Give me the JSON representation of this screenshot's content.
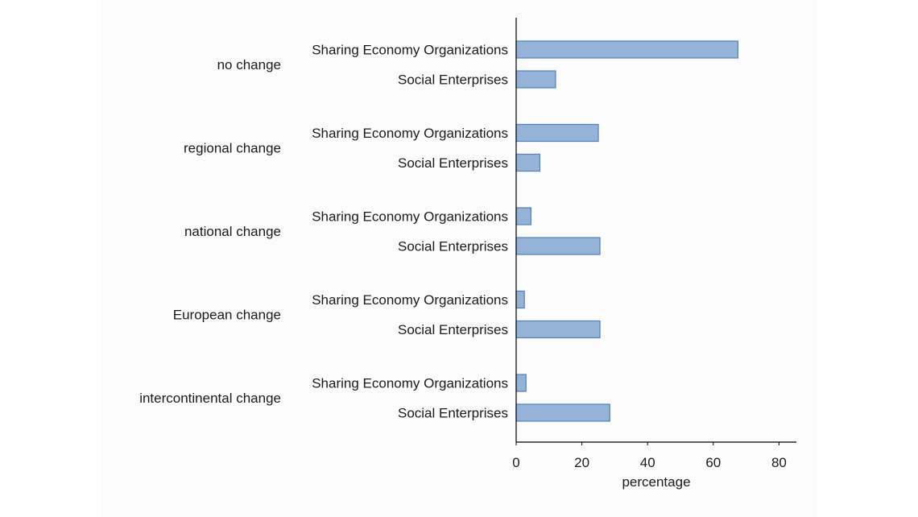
{
  "chart_data": {
    "type": "bar",
    "orientation": "horizontal",
    "categories": [
      "no change",
      "regional change",
      "national change",
      "European change",
      "intercontinental change"
    ],
    "series": [
      {
        "name": "Sharing Economy Organizations",
        "values": [
          67.5,
          25,
          4.5,
          2.5,
          3
        ]
      },
      {
        "name": "Social Enterprises",
        "values": [
          12,
          7.2,
          25.5,
          25.5,
          28.5
        ]
      }
    ],
    "xlabel": "percentage",
    "ylabel": "",
    "xlim": [
      0,
      85
    ],
    "xticks": [
      0,
      20,
      40,
      60,
      80
    ],
    "grid": false,
    "bar_color": "#95b3d7",
    "bar_edge_color": "#4f81bd"
  }
}
